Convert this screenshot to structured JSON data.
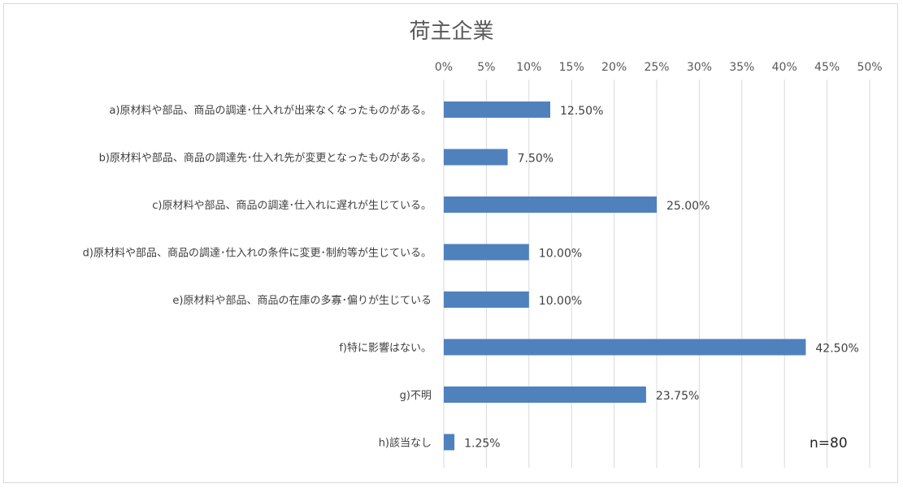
{
  "chart_data": {
    "type": "bar",
    "orientation": "horizontal",
    "title": "荷主企業",
    "categories": [
      "a)原材料や部品、商品の調達･仕入れが出来なくなったものがある。",
      "b)原材料や部品、商品の調達先･仕入れ先が変更となったものがある。",
      "c)原材料や部品、商品の調達･仕入れに遅れが生じている。",
      "d)原材料や部品、商品の調達･仕入れの条件に変更･制約等が生じている。",
      "e)原材料や部品、商品の在庫の多寡･偏りが生じている",
      "f)特に影響はない。",
      "g)不明",
      "h)該当なし"
    ],
    "values": [
      12.5,
      7.5,
      25.0,
      10.0,
      10.0,
      42.5,
      23.75,
      1.25
    ],
    "data_labels": [
      "12.50%",
      "7.50%",
      "25.00%",
      "10.00%",
      "10.00%",
      "42.50%",
      "23.75%",
      "1.25%"
    ],
    "xlim": [
      0,
      50
    ],
    "xticks": [
      "0%",
      "5%",
      "10%",
      "15%",
      "20%",
      "25%",
      "30%",
      "35%",
      "40%",
      "45%",
      "50%"
    ],
    "grid": true,
    "axis_position": "top",
    "bar_color": "#4f81bd",
    "annotation": "n=80"
  }
}
